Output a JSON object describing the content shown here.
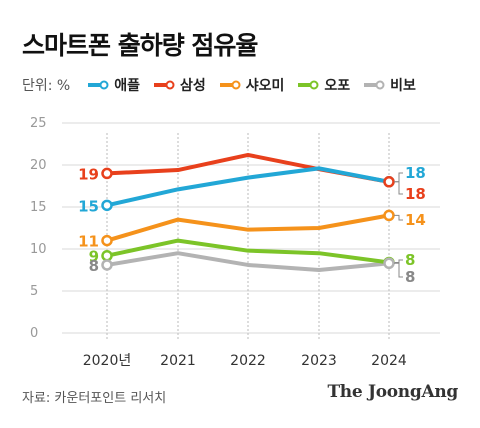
{
  "title": "스마트폰 출하량 점유율",
  "unit_label": "단위: %",
  "source": "자료: 카운터포인트 리서치",
  "brand": "The JoongAng",
  "chart_data": {
    "type": "line",
    "x": [
      "2020년",
      "2021",
      "2022",
      "2023",
      "2024"
    ],
    "ylim": [
      0,
      25
    ],
    "yticks": [
      0,
      5,
      10,
      15,
      20,
      25
    ],
    "grid": true,
    "legend_position": "top",
    "series": [
      {
        "name": "애플",
        "color": "#22a7d6",
        "values": [
          15.2,
          17.1,
          18.5,
          19.6,
          18.0
        ],
        "start_label": "15",
        "end_label": "18"
      },
      {
        "name": "삼성",
        "color": "#e8401c",
        "values": [
          19.0,
          19.4,
          21.2,
          19.5,
          18.0
        ],
        "start_label": "19",
        "end_label": "18"
      },
      {
        "name": "샤오미",
        "color": "#f5921b",
        "values": [
          11.0,
          13.5,
          12.3,
          12.5,
          14.0
        ],
        "start_label": "11",
        "end_label": "14"
      },
      {
        "name": "오포",
        "color": "#7cc428",
        "values": [
          9.2,
          11.0,
          9.8,
          9.5,
          8.4
        ],
        "start_label": "9",
        "end_label": "8"
      },
      {
        "name": "비보",
        "color": "#b3b3b3",
        "values": [
          8.1,
          9.5,
          8.1,
          7.5,
          8.3
        ],
        "start_label": "8",
        "end_label": "8"
      }
    ]
  }
}
